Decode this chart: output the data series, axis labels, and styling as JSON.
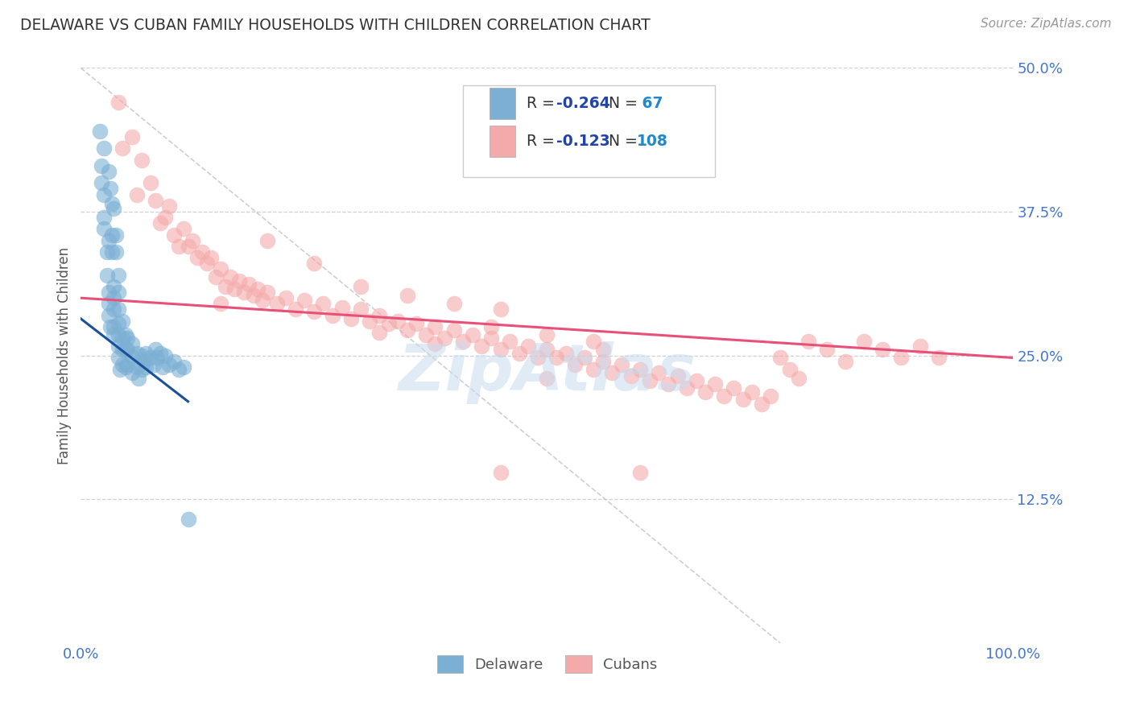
{
  "title": "DELAWARE VS CUBAN FAMILY HOUSEHOLDS WITH CHILDREN CORRELATION CHART",
  "source_text": "Source: ZipAtlas.com",
  "ylabel": "Family Households with Children",
  "xlim": [
    0,
    1.0
  ],
  "ylim": [
    0,
    0.5
  ],
  "yticks": [
    0.125,
    0.25,
    0.375,
    0.5
  ],
  "ytick_labels": [
    "12.5%",
    "25.0%",
    "37.5%",
    "50.0%"
  ],
  "xticks": [
    0.0,
    1.0
  ],
  "xtick_labels": [
    "0.0%",
    "100.0%"
  ],
  "delaware_color": "#7BAFD4",
  "cuban_color": "#F4AAAA",
  "delaware_line_color": "#1A4F9C",
  "cuban_line_color": "#E8507A",
  "tick_color": "#4477CC",
  "background_color": "#FFFFFF",
  "grid_color": "#CCCCCC",
  "watermark_color": "#C8DCF0",
  "legend_text_color": "#2244AA",
  "legend_n_color": "#2288CC",
  "axis_label_color": "#555555",
  "delaware_points": [
    [
      0.02,
      0.445
    ],
    [
      0.022,
      0.415
    ],
    [
      0.025,
      0.39
    ],
    [
      0.025,
      0.36
    ],
    [
      0.028,
      0.34
    ],
    [
      0.028,
      0.32
    ],
    [
      0.03,
      0.305
    ],
    [
      0.03,
      0.295
    ],
    [
      0.03,
      0.285
    ],
    [
      0.032,
      0.275
    ],
    [
      0.033,
      0.382
    ],
    [
      0.033,
      0.355
    ],
    [
      0.033,
      0.34
    ],
    [
      0.035,
      0.31
    ],
    [
      0.035,
      0.3
    ],
    [
      0.035,
      0.29
    ],
    [
      0.035,
      0.275
    ],
    [
      0.035,
      0.268
    ],
    [
      0.038,
      0.355
    ],
    [
      0.038,
      0.34
    ],
    [
      0.04,
      0.32
    ],
    [
      0.04,
      0.305
    ],
    [
      0.04,
      0.29
    ],
    [
      0.04,
      0.278
    ],
    [
      0.04,
      0.268
    ],
    [
      0.04,
      0.258
    ],
    [
      0.04,
      0.248
    ],
    [
      0.042,
      0.238
    ],
    [
      0.045,
      0.28
    ],
    [
      0.045,
      0.265
    ],
    [
      0.045,
      0.255
    ],
    [
      0.045,
      0.242
    ],
    [
      0.048,
      0.268
    ],
    [
      0.048,
      0.255
    ],
    [
      0.048,
      0.24
    ],
    [
      0.05,
      0.265
    ],
    [
      0.05,
      0.255
    ],
    [
      0.05,
      0.242
    ],
    [
      0.055,
      0.26
    ],
    [
      0.055,
      0.248
    ],
    [
      0.055,
      0.235
    ],
    [
      0.06,
      0.252
    ],
    [
      0.06,
      0.24
    ],
    [
      0.062,
      0.23
    ],
    [
      0.065,
      0.25
    ],
    [
      0.065,
      0.238
    ],
    [
      0.068,
      0.245
    ],
    [
      0.07,
      0.252
    ],
    [
      0.07,
      0.24
    ],
    [
      0.075,
      0.248
    ],
    [
      0.078,
      0.242
    ],
    [
      0.08,
      0.255
    ],
    [
      0.082,
      0.248
    ],
    [
      0.085,
      0.252
    ],
    [
      0.088,
      0.24
    ],
    [
      0.09,
      0.25
    ],
    [
      0.095,
      0.242
    ],
    [
      0.1,
      0.245
    ],
    [
      0.105,
      0.238
    ],
    [
      0.11,
      0.24
    ],
    [
      0.025,
      0.43
    ],
    [
      0.03,
      0.41
    ],
    [
      0.032,
      0.395
    ],
    [
      0.035,
      0.378
    ],
    [
      0.022,
      0.4
    ],
    [
      0.025,
      0.37
    ],
    [
      0.03,
      0.35
    ],
    [
      0.115,
      0.108
    ]
  ],
  "cuban_points": [
    [
      0.04,
      0.47
    ],
    [
      0.045,
      0.43
    ],
    [
      0.055,
      0.44
    ],
    [
      0.06,
      0.39
    ],
    [
      0.065,
      0.42
    ],
    [
      0.075,
      0.4
    ],
    [
      0.08,
      0.385
    ],
    [
      0.085,
      0.365
    ],
    [
      0.09,
      0.37
    ],
    [
      0.095,
      0.38
    ],
    [
      0.1,
      0.355
    ],
    [
      0.105,
      0.345
    ],
    [
      0.11,
      0.36
    ],
    [
      0.115,
      0.345
    ],
    [
      0.12,
      0.35
    ],
    [
      0.125,
      0.335
    ],
    [
      0.13,
      0.34
    ],
    [
      0.135,
      0.33
    ],
    [
      0.14,
      0.335
    ],
    [
      0.145,
      0.318
    ],
    [
      0.15,
      0.325
    ],
    [
      0.155,
      0.31
    ],
    [
      0.16,
      0.318
    ],
    [
      0.165,
      0.308
    ],
    [
      0.17,
      0.315
    ],
    [
      0.175,
      0.305
    ],
    [
      0.18,
      0.312
    ],
    [
      0.185,
      0.302
    ],
    [
      0.19,
      0.308
    ],
    [
      0.195,
      0.298
    ],
    [
      0.2,
      0.305
    ],
    [
      0.21,
      0.295
    ],
    [
      0.22,
      0.3
    ],
    [
      0.23,
      0.29
    ],
    [
      0.24,
      0.298
    ],
    [
      0.25,
      0.288
    ],
    [
      0.26,
      0.295
    ],
    [
      0.27,
      0.285
    ],
    [
      0.28,
      0.292
    ],
    [
      0.29,
      0.282
    ],
    [
      0.3,
      0.29
    ],
    [
      0.31,
      0.28
    ],
    [
      0.32,
      0.285
    ],
    [
      0.33,
      0.278
    ],
    [
      0.34,
      0.28
    ],
    [
      0.35,
      0.272
    ],
    [
      0.36,
      0.278
    ],
    [
      0.37,
      0.268
    ],
    [
      0.38,
      0.275
    ],
    [
      0.39,
      0.265
    ],
    [
      0.4,
      0.272
    ],
    [
      0.41,
      0.262
    ],
    [
      0.42,
      0.268
    ],
    [
      0.43,
      0.258
    ],
    [
      0.44,
      0.265
    ],
    [
      0.45,
      0.255
    ],
    [
      0.46,
      0.262
    ],
    [
      0.47,
      0.252
    ],
    [
      0.48,
      0.258
    ],
    [
      0.49,
      0.248
    ],
    [
      0.5,
      0.255
    ],
    [
      0.51,
      0.248
    ],
    [
      0.52,
      0.252
    ],
    [
      0.53,
      0.242
    ],
    [
      0.54,
      0.248
    ],
    [
      0.55,
      0.238
    ],
    [
      0.56,
      0.245
    ],
    [
      0.57,
      0.235
    ],
    [
      0.58,
      0.242
    ],
    [
      0.59,
      0.232
    ],
    [
      0.6,
      0.238
    ],
    [
      0.61,
      0.228
    ],
    [
      0.62,
      0.235
    ],
    [
      0.63,
      0.225
    ],
    [
      0.64,
      0.232
    ],
    [
      0.65,
      0.222
    ],
    [
      0.66,
      0.228
    ],
    [
      0.67,
      0.218
    ],
    [
      0.68,
      0.225
    ],
    [
      0.69,
      0.215
    ],
    [
      0.7,
      0.222
    ],
    [
      0.71,
      0.212
    ],
    [
      0.72,
      0.218
    ],
    [
      0.73,
      0.208
    ],
    [
      0.74,
      0.215
    ],
    [
      0.75,
      0.248
    ],
    [
      0.76,
      0.238
    ],
    [
      0.77,
      0.23
    ],
    [
      0.78,
      0.262
    ],
    [
      0.8,
      0.255
    ],
    [
      0.82,
      0.245
    ],
    [
      0.84,
      0.262
    ],
    [
      0.86,
      0.255
    ],
    [
      0.88,
      0.248
    ],
    [
      0.9,
      0.258
    ],
    [
      0.92,
      0.248
    ],
    [
      0.15,
      0.295
    ],
    [
      0.2,
      0.35
    ],
    [
      0.25,
      0.33
    ],
    [
      0.3,
      0.31
    ],
    [
      0.35,
      0.302
    ],
    [
      0.4,
      0.295
    ],
    [
      0.45,
      0.29
    ],
    [
      0.5,
      0.23
    ],
    [
      0.55,
      0.262
    ],
    [
      0.45,
      0.148
    ],
    [
      0.6,
      0.148
    ],
    [
      0.32,
      0.27
    ],
    [
      0.38,
      0.26
    ],
    [
      0.44,
      0.275
    ],
    [
      0.5,
      0.268
    ],
    [
      0.56,
      0.255
    ]
  ],
  "delaware_reg_line": [
    [
      0.0,
      0.282
    ],
    [
      0.115,
      0.21
    ]
  ],
  "cuban_reg_line": [
    [
      0.0,
      0.3
    ],
    [
      1.0,
      0.248
    ]
  ],
  "ref_line": [
    [
      0.0,
      0.5
    ],
    [
      0.75,
      0.0
    ]
  ]
}
